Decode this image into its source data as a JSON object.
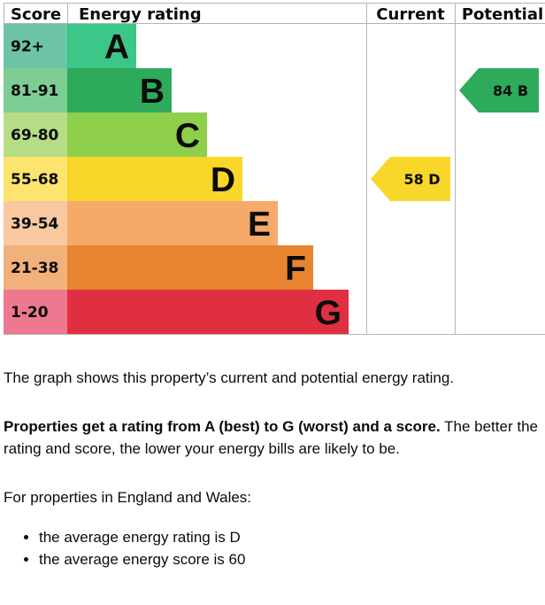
{
  "headers": {
    "score": "Score",
    "rating": "Energy rating",
    "current": "Current",
    "potential": "Potential"
  },
  "chart_data": {
    "type": "bar",
    "bands": [
      {
        "letter": "A",
        "range": "92+",
        "color": "#008054",
        "scoreColor": "#6cc3a6"
      },
      {
        "letter": "B",
        "range": "81-91",
        "color": "#19b459",
        "scoreColor": "#7ecd95"
      },
      {
        "letter": "C",
        "range": "69-80",
        "color": "#8dce46",
        "scoreColor": "#b6dd86"
      },
      {
        "letter": "D",
        "range": "55-68",
        "color": "#ffd500",
        "scoreColor": "#fde46e"
      },
      {
        "letter": "E",
        "range": "39-54",
        "color": "#fcaa65",
        "scoreColor": "#f9c8a0"
      },
      {
        "letter": "F",
        "range": "21-38",
        "color": "#ef8023",
        "scoreColor": "#f2b07a"
      },
      {
        "letter": "G",
        "range": "1-20",
        "color": "#e9153b",
        "scoreColor": "#ee7890"
      }
    ],
    "bandColors": [
      "#3cc688",
      "#2eaa5b",
      "#8ecf4b",
      "#f8d62a",
      "#f5aa6a",
      "#e8842f",
      "#e12f42"
    ],
    "current": {
      "score": 58,
      "letter": "D",
      "label": "58  D",
      "color": "#f8d62a"
    },
    "potential": {
      "score": 84,
      "letter": "B",
      "label": "84  B",
      "color": "#2eaa5b"
    }
  },
  "text": {
    "p1": "The graph shows this property’s current and potential energy rating.",
    "p2_bold": "Properties get a rating from A (best) to G (worst) and a score.",
    "p2_rest": " The better the rating and score, the lower your energy bills are likely to be.",
    "p3": "For properties in England and Wales:",
    "bullets": [
      "the average energy rating is D",
      "the average energy score is 60"
    ]
  }
}
